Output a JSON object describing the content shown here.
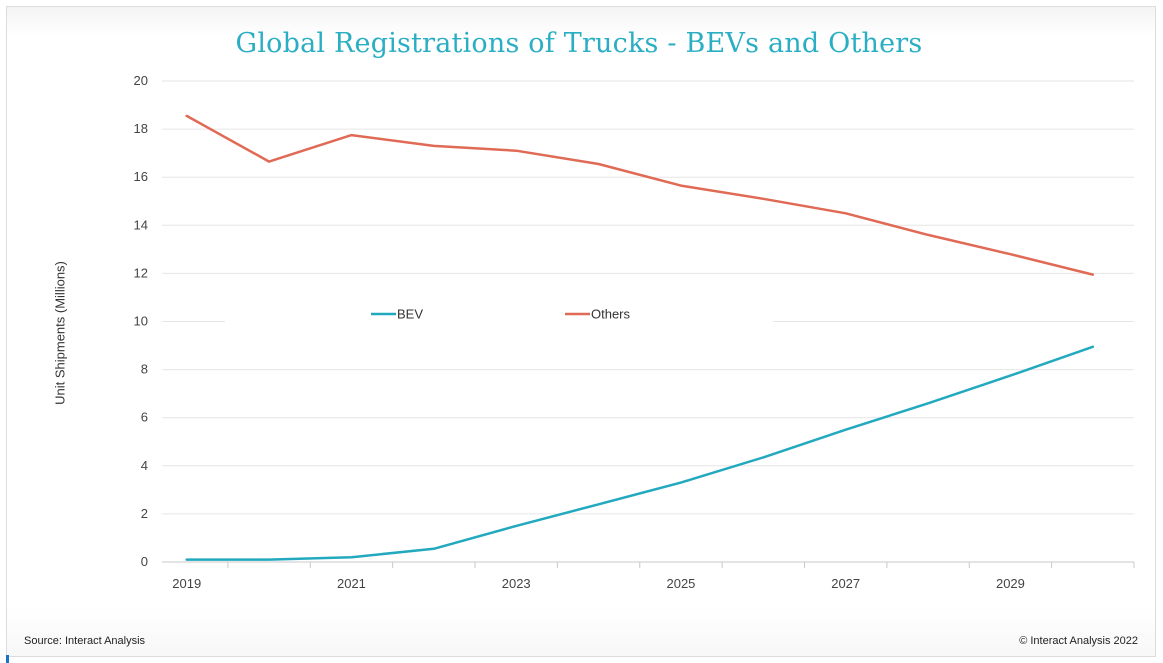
{
  "chart_data": {
    "type": "line",
    "title": "Global Registrations of Trucks - BEVs and Others",
    "xlabel": "",
    "ylabel": "Unit Shipments (Millions)",
    "x": [
      2019,
      2020,
      2021,
      2022,
      2023,
      2024,
      2025,
      2026,
      2027,
      2028,
      2029,
      2030
    ],
    "x_tick_labels": [
      "2019",
      "2021",
      "2023",
      "2025",
      "2027",
      "2029"
    ],
    "y_tick_labels": [
      "0",
      "2",
      "4",
      "6",
      "8",
      "10",
      "12",
      "14",
      "16",
      "18",
      "20"
    ],
    "xlim": [
      2018.7,
      2030.5
    ],
    "ylim": [
      0,
      20
    ],
    "grid": true,
    "legend_position": "center",
    "series": [
      {
        "name": "BEV",
        "color": "#23a9bf",
        "values": [
          0.1,
          0.1,
          0.2,
          0.55,
          1.5,
          2.4,
          3.3,
          4.35,
          5.5,
          6.6,
          7.75,
          8.95
        ]
      },
      {
        "name": "Others",
        "color": "#e06a55",
        "values": [
          18.55,
          16.65,
          17.75,
          17.3,
          17.1,
          16.55,
          15.65,
          15.1,
          14.5,
          13.6,
          12.8,
          11.95
        ]
      }
    ]
  },
  "footer": {
    "source": "Source: Interact Analysis",
    "copyright": "© Interact Analysis 2022"
  }
}
